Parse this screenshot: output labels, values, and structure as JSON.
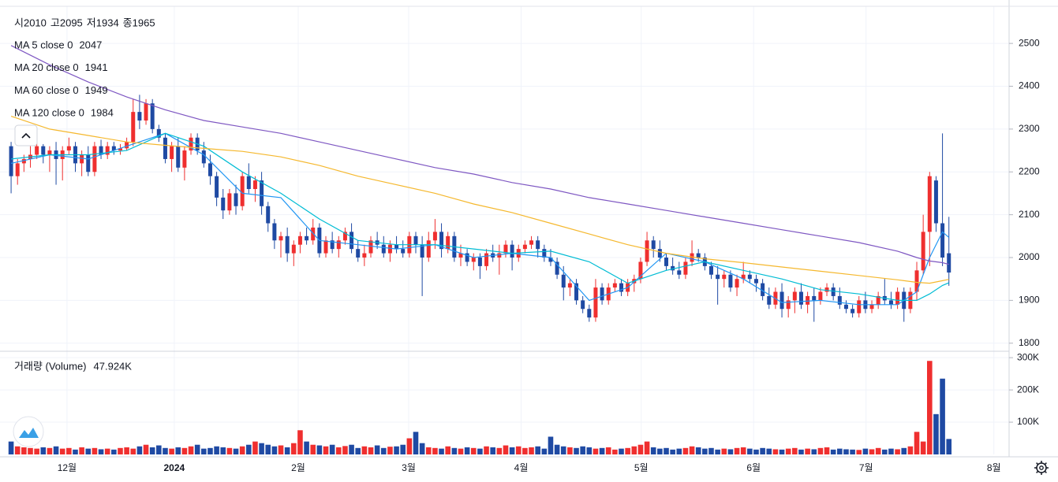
{
  "chart_data": {
    "type": "candlestick",
    "ohlc_legend": [
      {
        "label": "시",
        "value": 2010
      },
      {
        "label": "고",
        "value": 2095
      },
      {
        "label": "저",
        "value": 1934
      },
      {
        "label": "종",
        "value": 1965
      }
    ],
    "up_color": "#ef2f2f",
    "down_color": "#1f4aa3",
    "xlim": [
      -0.5,
      155
    ],
    "xticks": [
      {
        "value": 8.7,
        "label": "12월"
      },
      {
        "value": 25.4,
        "label": "2024"
      },
      {
        "value": 44.7,
        "label": "2월"
      },
      {
        "value": 61.9,
        "label": "3월"
      },
      {
        "value": 79.4,
        "label": "4월"
      },
      {
        "value": 98.1,
        "label": "5월"
      },
      {
        "value": 115.6,
        "label": "6월"
      },
      {
        "value": 133.1,
        "label": "7월"
      },
      {
        "value": 153,
        "label": "8월"
      }
    ],
    "ylim": [
      1783,
      2583
    ],
    "yticks": [
      1800,
      1900,
      2000,
      2100,
      2200,
      2300,
      2400,
      2500
    ],
    "grid": true,
    "ohlc": [
      [
        2260,
        2270,
        2150,
        2190
      ],
      [
        2190,
        2230,
        2170,
        2220
      ],
      [
        2220,
        2240,
        2200,
        2230
      ],
      [
        2230,
        2260,
        2210,
        2240
      ],
      [
        2240,
        2270,
        2230,
        2260
      ],
      [
        2260,
        2265,
        2220,
        2240
      ],
      [
        2240,
        2260,
        2200,
        2250
      ],
      [
        2250,
        2270,
        2170,
        2230
      ],
      [
        2230,
        2260,
        2180,
        2250
      ],
      [
        2250,
        2280,
        2240,
        2260
      ],
      [
        2260,
        2270,
        2200,
        2220
      ],
      [
        2220,
        2250,
        2190,
        2240
      ],
      [
        2240,
        2260,
        2190,
        2200
      ],
      [
        2200,
        2270,
        2190,
        2260
      ],
      [
        2260,
        2275,
        2230,
        2240
      ],
      [
        2240,
        2270,
        2230,
        2260
      ],
      [
        2260,
        2270,
        2240,
        2250
      ],
      [
        2250,
        2265,
        2240,
        2255
      ],
      [
        2255,
        2280,
        2250,
        2270
      ],
      [
        2270,
        2370,
        2260,
        2340
      ],
      [
        2340,
        2380,
        2300,
        2320
      ],
      [
        2320,
        2370,
        2310,
        2360
      ],
      [
        2360,
        2370,
        2290,
        2300
      ],
      [
        2300,
        2310,
        2270,
        2280
      ],
      [
        2280,
        2290,
        2220,
        2230
      ],
      [
        2230,
        2270,
        2200,
        2260
      ],
      [
        2260,
        2280,
        2200,
        2210
      ],
      [
        2210,
        2260,
        2180,
        2250
      ],
      [
        2250,
        2290,
        2240,
        2280
      ],
      [
        2280,
        2290,
        2240,
        2250
      ],
      [
        2250,
        2270,
        2210,
        2220
      ],
      [
        2220,
        2240,
        2170,
        2190
      ],
      [
        2190,
        2200,
        2120,
        2140
      ],
      [
        2140,
        2160,
        2090,
        2110
      ],
      [
        2110,
        2160,
        2100,
        2150
      ],
      [
        2150,
        2170,
        2100,
        2120
      ],
      [
        2120,
        2200,
        2110,
        2190
      ],
      [
        2190,
        2220,
        2150,
        2160
      ],
      [
        2160,
        2190,
        2130,
        2180
      ],
      [
        2180,
        2200,
        2100,
        2120
      ],
      [
        2120,
        2130,
        2060,
        2080
      ],
      [
        2080,
        2090,
        2020,
        2040
      ],
      [
        2040,
        2060,
        2000,
        2050
      ],
      [
        2050,
        2070,
        1990,
        2010
      ],
      [
        2010,
        2040,
        1980,
        2030
      ],
      [
        2030,
        2060,
        2010,
        2050
      ],
      [
        2050,
        2070,
        2030,
        2040
      ],
      [
        2040,
        2090,
        2030,
        2070
      ],
      [
        2070,
        2080,
        2000,
        2010
      ],
      [
        2010,
        2050,
        2000,
        2040
      ],
      [
        2040,
        2060,
        2010,
        2020
      ],
      [
        2020,
        2050,
        2000,
        2040
      ],
      [
        2040,
        2070,
        2030,
        2060
      ],
      [
        2060,
        2080,
        2010,
        2020
      ],
      [
        2020,
        2040,
        1990,
        2000
      ],
      [
        2000,
        2030,
        1980,
        2010
      ],
      [
        2010,
        2050,
        2000,
        2040
      ],
      [
        2040,
        2060,
        2020,
        2030
      ],
      [
        2030,
        2050,
        2000,
        2010
      ],
      [
        2010,
        2040,
        1990,
        2030
      ],
      [
        2030,
        2050,
        2010,
        2020
      ],
      [
        2020,
        2040,
        2000,
        2010
      ],
      [
        2010,
        2060,
        2000,
        2050
      ],
      [
        2050,
        2060,
        2010,
        2030
      ],
      [
        2030,
        2050,
        1910,
        2000
      ],
      [
        2000,
        2060,
        1990,
        2040
      ],
      [
        2040,
        2090,
        2020,
        2060
      ],
      [
        2060,
        2080,
        2000,
        2020
      ],
      [
        2020,
        2060,
        2010,
        2050
      ],
      [
        2050,
        2060,
        1990,
        2000
      ],
      [
        2000,
        2030,
        1980,
        2010
      ],
      [
        2010,
        2020,
        1980,
        1990
      ],
      [
        1990,
        2010,
        1970,
        2000
      ],
      [
        2000,
        2010,
        1950,
        1980
      ],
      [
        1980,
        2020,
        1970,
        2010
      ],
      [
        2010,
        2030,
        1990,
        2000
      ],
      [
        2000,
        2030,
        1960,
        2010
      ],
      [
        2010,
        2040,
        2000,
        2030
      ],
      [
        2030,
        2040,
        1970,
        2000
      ],
      [
        2000,
        2030,
        1990,
        2020
      ],
      [
        2020,
        2040,
        2010,
        2030
      ],
      [
        2030,
        2050,
        2020,
        2040
      ],
      [
        2040,
        2050,
        2000,
        2020
      ],
      [
        2020,
        2030,
        1990,
        2000
      ],
      [
        2000,
        2020,
        1980,
        1990
      ],
      [
        1990,
        2000,
        1950,
        1960
      ],
      [
        1960,
        1980,
        1900,
        1930
      ],
      [
        1930,
        1950,
        1910,
        1940
      ],
      [
        1940,
        1950,
        1890,
        1900
      ],
      [
        1900,
        1910,
        1870,
        1880
      ],
      [
        1880,
        1890,
        1850,
        1860
      ],
      [
        1860,
        1950,
        1850,
        1930
      ],
      [
        1930,
        1940,
        1890,
        1900
      ],
      [
        1900,
        1940,
        1890,
        1930
      ],
      [
        1930,
        1950,
        1920,
        1940
      ],
      [
        1940,
        1950,
        1910,
        1920
      ],
      [
        1920,
        1950,
        1910,
        1940
      ],
      [
        1940,
        1960,
        1920,
        1950
      ],
      [
        1950,
        2000,
        1940,
        1990
      ],
      [
        1990,
        2060,
        1980,
        2040
      ],
      [
        2040,
        2050,
        2000,
        2020
      ],
      [
        2020,
        2040,
        1990,
        2000
      ],
      [
        2000,
        2010,
        1970,
        1980
      ],
      [
        1980,
        2000,
        1960,
        1970
      ],
      [
        1970,
        1990,
        1950,
        1960
      ],
      [
        1960,
        2000,
        1950,
        1990
      ],
      [
        1990,
        2040,
        1980,
        2010
      ],
      [
        2010,
        2020,
        1990,
        2000
      ],
      [
        2000,
        2010,
        1970,
        1980
      ],
      [
        1980,
        1990,
        1950,
        1960
      ],
      [
        1960,
        1980,
        1890,
        1950
      ],
      [
        1950,
        1970,
        1930,
        1960
      ],
      [
        1960,
        1970,
        1920,
        1930
      ],
      [
        1930,
        1960,
        1910,
        1950
      ],
      [
        1950,
        1990,
        1940,
        1960
      ],
      [
        1960,
        1970,
        1940,
        1950
      ],
      [
        1950,
        1960,
        1920,
        1940
      ],
      [
        1940,
        1950,
        1900,
        1910
      ],
      [
        1910,
        1930,
        1880,
        1890
      ],
      [
        1890,
        1930,
        1880,
        1920
      ],
      [
        1920,
        1940,
        1860,
        1880
      ],
      [
        1880,
        1910,
        1860,
        1900
      ],
      [
        1900,
        1930,
        1870,
        1920
      ],
      [
        1920,
        1940,
        1880,
        1890
      ],
      [
        1890,
        1920,
        1870,
        1910
      ],
      [
        1910,
        1930,
        1850,
        1900
      ],
      [
        1900,
        1930,
        1890,
        1920
      ],
      [
        1920,
        1940,
        1910,
        1930
      ],
      [
        1930,
        1940,
        1900,
        1910
      ],
      [
        1910,
        1930,
        1880,
        1890
      ],
      [
        1890,
        1900,
        1870,
        1880
      ],
      [
        1880,
        1890,
        1860,
        1870
      ],
      [
        1870,
        1910,
        1860,
        1900
      ],
      [
        1900,
        1920,
        1870,
        1880
      ],
      [
        1880,
        1900,
        1870,
        1890
      ],
      [
        1890,
        1920,
        1880,
        1910
      ],
      [
        1910,
        1950,
        1890,
        1900
      ],
      [
        1900,
        1920,
        1880,
        1890
      ],
      [
        1890,
        1930,
        1880,
        1920
      ],
      [
        1920,
        1930,
        1850,
        1880
      ],
      [
        1880,
        1930,
        1870,
        1920
      ],
      [
        1920,
        1990,
        1900,
        1970
      ],
      [
        1970,
        2100,
        1960,
        2060
      ],
      [
        2060,
        2200,
        1980,
        2190
      ],
      [
        2180,
        2190,
        2060,
        2080
      ],
      [
        2080,
        2290,
        1980,
        2000
      ],
      [
        2010,
        2095,
        1934,
        1965
      ]
    ],
    "ma_x": [
      0,
      6,
      12,
      18,
      24,
      30,
      36,
      42,
      48,
      54,
      60,
      66,
      72,
      78,
      84,
      90,
      96,
      102,
      108,
      114,
      120,
      126,
      132,
      138,
      141,
      143,
      145,
      146
    ],
    "ma": [
      {
        "name": "MA 5 close 0",
        "value": 2047,
        "color": "#2196f3",
        "values": [
          2220,
          2240,
          2230,
          2260,
          2290,
          2240,
          2150,
          2140,
          2040,
          2030,
          2020,
          2030,
          2000,
          2010,
          2000,
          1900,
          1930,
          2010,
          1990,
          1950,
          1895,
          1900,
          1890,
          1890,
          1920,
          2000,
          2060,
          2047
        ]
      },
      {
        "name": "MA 20 close 0",
        "value": 1941,
        "color": "#00bcd4",
        "values": [
          2230,
          2240,
          2240,
          2250,
          2290,
          2260,
          2200,
          2150,
          2090,
          2040,
          2030,
          2030,
          2020,
          2010,
          2015,
          1990,
          1940,
          1970,
          1990,
          1970,
          1950,
          1925,
          1915,
          1900,
          1900,
          1915,
          1935,
          1941
        ]
      },
      {
        "name": "MA 60 close 0",
        "value": 1949,
        "color": "#f5b82e",
        "values": [
          2330,
          2300,
          2285,
          2270,
          2262,
          2255,
          2248,
          2235,
          2215,
          2190,
          2170,
          2150,
          2125,
          2105,
          2080,
          2055,
          2030,
          2010,
          1997,
          1988,
          1978,
          1968,
          1958,
          1948,
          1942,
          1940,
          1946,
          1949
        ]
      },
      {
        "name": "MA 120 close 0",
        "value": 1984,
        "color": "#7e57c2",
        "values": [
          2495,
          2450,
          2410,
          2375,
          2345,
          2320,
          2305,
          2290,
          2270,
          2250,
          2230,
          2210,
          2195,
          2175,
          2160,
          2140,
          2125,
          2110,
          2095,
          2080,
          2065,
          2050,
          2035,
          2015,
          2000,
          1992,
          1988,
          1984
        ]
      }
    ],
    "volume_legend": {
      "name": "거래량 (Volume)",
      "value": 47.924,
      "value_label": "47.924K"
    },
    "vlim": [
      0,
      315
    ],
    "vticks": [
      {
        "value": 100,
        "label": "100K"
      },
      {
        "value": 200,
        "label": "200K"
      },
      {
        "value": 300,
        "label": "300K"
      }
    ],
    "volume": [
      40,
      25,
      22,
      20,
      18,
      22,
      20,
      25,
      18,
      20,
      15,
      22,
      18,
      20,
      16,
      18,
      15,
      20,
      22,
      18,
      25,
      30,
      22,
      28,
      20,
      18,
      22,
      20,
      25,
      30,
      18,
      20,
      25,
      22,
      20,
      18,
      25,
      30,
      40,
      35,
      30,
      25,
      28,
      22,
      35,
      75,
      40,
      30,
      28,
      25,
      30,
      22,
      26,
      30,
      20,
      25,
      22,
      28,
      20,
      24,
      25,
      30,
      50,
      70,
      35,
      22,
      20,
      18,
      25,
      20,
      18,
      22,
      20,
      18,
      25,
      22,
      20,
      28,
      22,
      25,
      20,
      22,
      25,
      18,
      55,
      30,
      25,
      22,
      20,
      25,
      22,
      18,
      20,
      22,
      15,
      18,
      20,
      25,
      30,
      40,
      22,
      18,
      20,
      15,
      18,
      20,
      25,
      22,
      18,
      20,
      15,
      18,
      16,
      20,
      22,
      18,
      15,
      20,
      18,
      16,
      15,
      18,
      20,
      15,
      18,
      16,
      20,
      22,
      15,
      18,
      16,
      15,
      14,
      18,
      16,
      20,
      15,
      18,
      16,
      20,
      25,
      70,
      40,
      290,
      125,
      235,
      47.924
    ]
  }
}
